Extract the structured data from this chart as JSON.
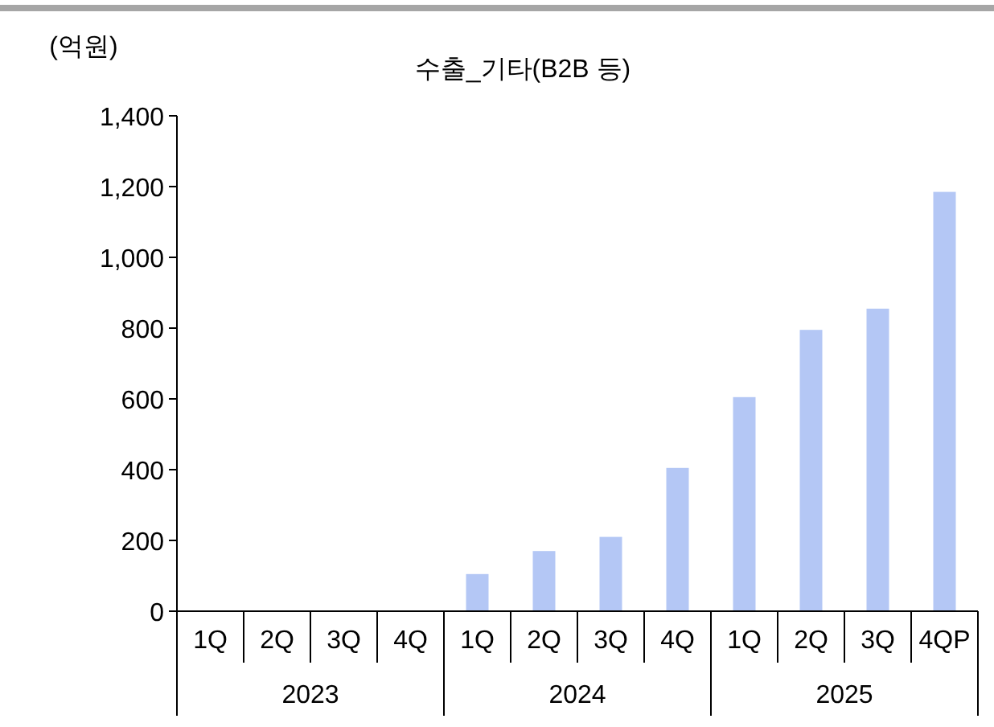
{
  "chart_data": {
    "type": "bar",
    "title": "수출_기타(B2B 등)",
    "ylabel": "(억원)",
    "categories": [
      "1Q",
      "2Q",
      "3Q",
      "4Q",
      "1Q",
      "2Q",
      "3Q",
      "4Q",
      "1Q",
      "2Q",
      "3Q",
      "4QP"
    ],
    "values": [
      null,
      null,
      null,
      null,
      105,
      170,
      210,
      405,
      605,
      795,
      855,
      1185
    ],
    "color": "#b4c7f5",
    "ylim": [
      0,
      1400
    ],
    "yticks": [
      0,
      200,
      400,
      600,
      800,
      {
        "value": 1000,
        "label": "1,000"
      },
      {
        "value": 1200,
        "label": "1,200"
      },
      {
        "value": 1400,
        "label": "1,400"
      }
    ],
    "annotations": [
      "2023",
      "2024",
      "2025"
    ]
  }
}
